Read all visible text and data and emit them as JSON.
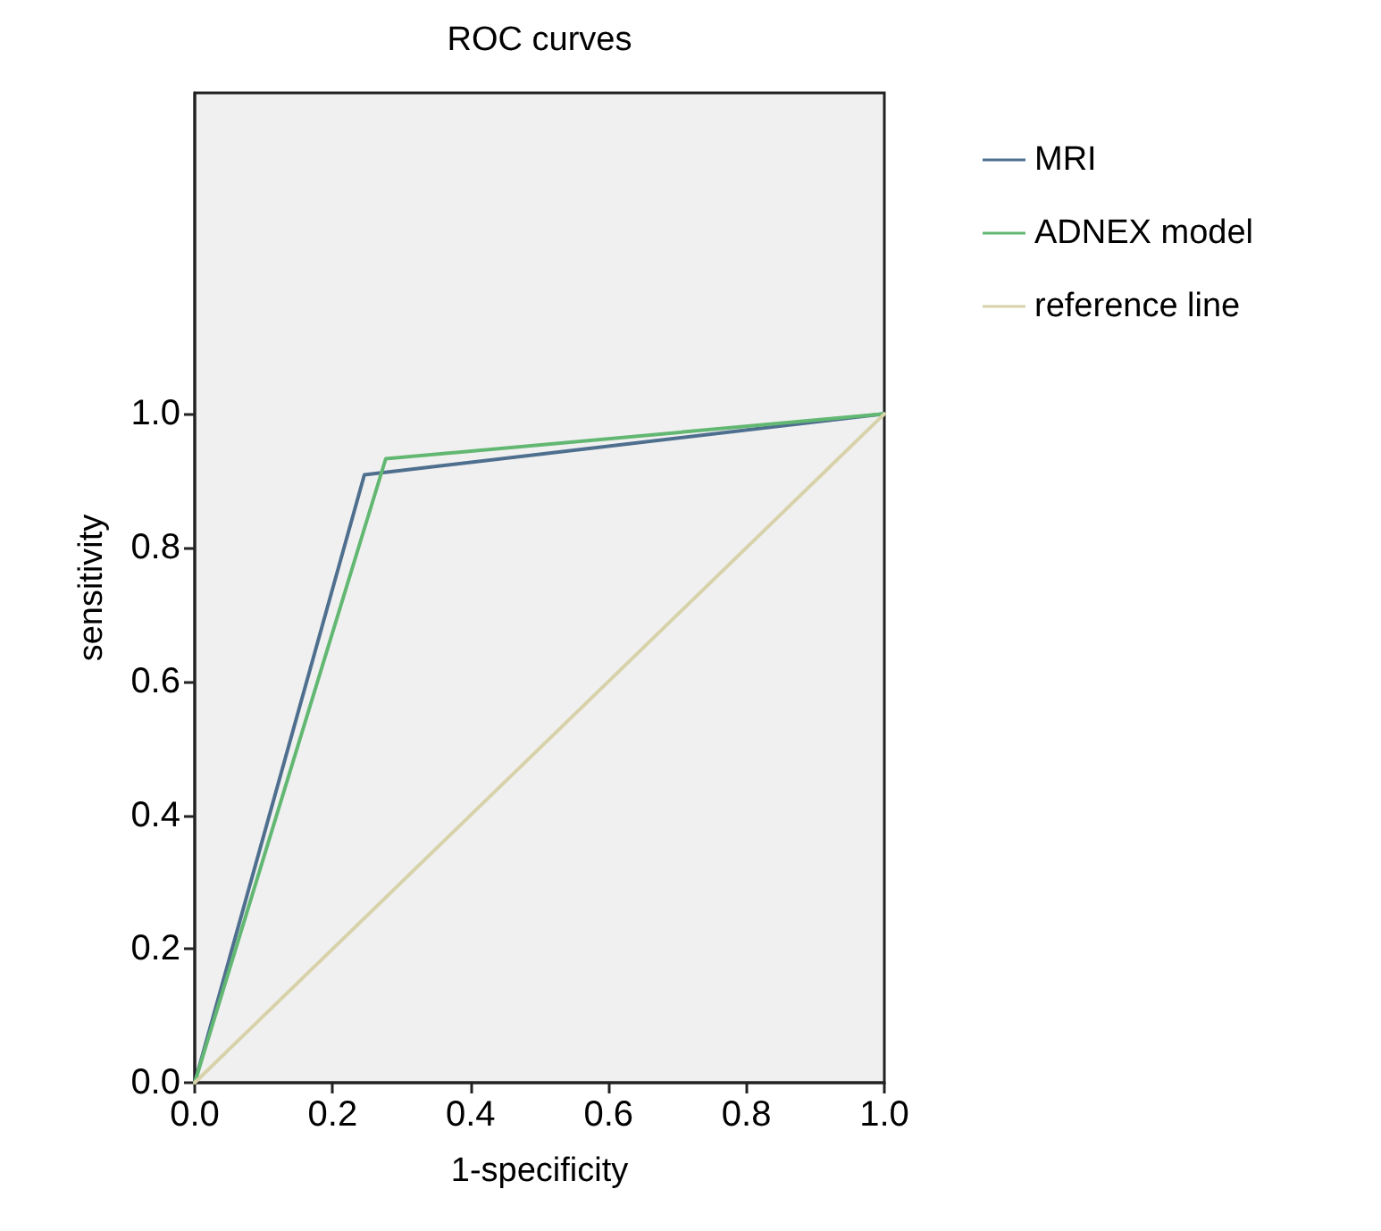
{
  "chart_data": {
    "type": "line",
    "title": "ROC curves",
    "xlabel": "1-specificity",
    "ylabel": "sensitivity",
    "series": [
      {
        "name": "MRI",
        "color": "#4f6f8f",
        "x": [
          0,
          0.246,
          1
        ],
        "values": [
          0,
          0.909,
          1
        ]
      },
      {
        "name": "ADNEX model",
        "color": "#62b872",
        "x": [
          0,
          0.277,
          1
        ],
        "values": [
          0,
          0.933,
          1
        ]
      },
      {
        "name": "reference line",
        "color": "#d8d2aa",
        "x": [
          0,
          1
        ],
        "values": [
          0,
          1
        ]
      }
    ],
    "xlim": [
      0,
      1
    ],
    "ylim": [
      0,
      1.48
    ],
    "xticks": [
      {
        "value": 0,
        "label": "0.0"
      },
      {
        "value": 0.2,
        "label": "0.2"
      },
      {
        "value": 0.4,
        "label": "0.4"
      },
      {
        "value": 0.6,
        "label": "0.6"
      },
      {
        "value": 0.8,
        "label": "0.8"
      },
      {
        "value": 1,
        "label": "1.0"
      }
    ],
    "yticks": [
      {
        "value": 0,
        "label": "0.0"
      },
      {
        "value": 0.2,
        "label": "0.2"
      },
      {
        "value": 0.4,
        "label": "0.4"
      },
      {
        "value": 0.6,
        "label": "0.6"
      },
      {
        "value": 0.8,
        "label": "0.8"
      },
      {
        "value": 1,
        "label": "1.0"
      }
    ],
    "grid": false,
    "legend": "right",
    "marker": "none",
    "line_style": "solid"
  }
}
